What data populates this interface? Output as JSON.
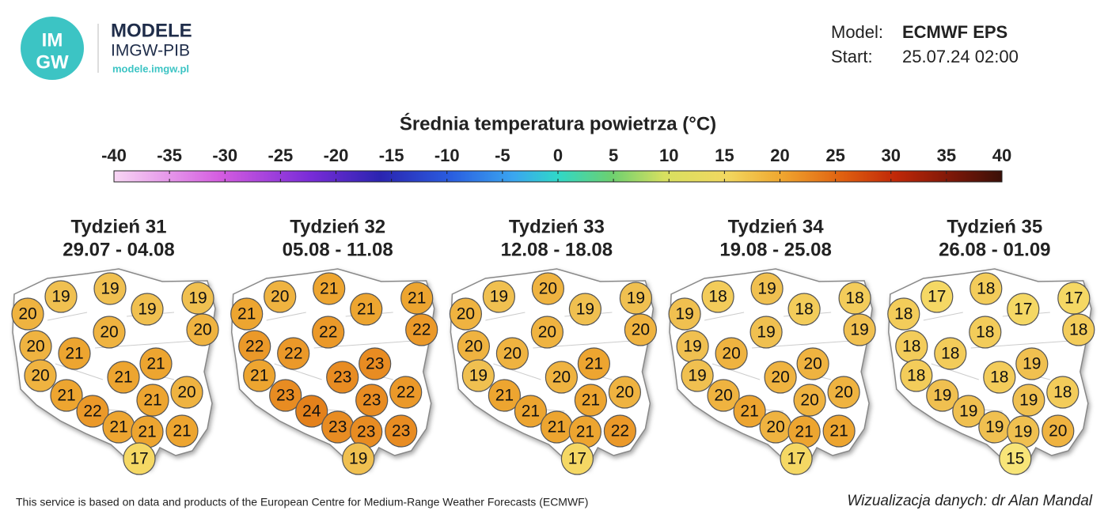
{
  "header": {
    "logo_top": "IM",
    "logo_bottom": "GW",
    "brand": "MODELE",
    "org": "IMGW-PIB",
    "url": "modele.imgw.pl",
    "model_label": "Model:",
    "model": "ECMWF EPS",
    "start_label": "Start:",
    "start": "25.07.24 02:00"
  },
  "colorbar": {
    "title": "Średnia temperatura powietrza (°C)",
    "ticks": [
      -40,
      -35,
      -30,
      -25,
      -20,
      -15,
      -10,
      -5,
      0,
      5,
      10,
      15,
      20,
      25,
      30,
      35,
      40
    ]
  },
  "weeks": [
    {
      "title": "Tydzień 31",
      "dates": "29.07 - 04.08",
      "values": [
        19,
        19,
        19,
        19,
        20,
        20,
        20,
        20,
        21,
        21,
        21,
        20,
        20,
        21,
        21,
        22,
        21,
        21,
        21,
        17
      ]
    },
    {
      "title": "Tydzień 32",
      "dates": "05.08 - 11.08",
      "values": [
        20,
        21,
        21,
        21,
        21,
        22,
        22,
        22,
        22,
        23,
        23,
        21,
        22,
        23,
        23,
        24,
        23,
        23,
        23,
        19
      ]
    },
    {
      "title": "Tydzień 33",
      "dates": "12.08 - 18.08",
      "values": [
        19,
        20,
        19,
        19,
        20,
        20,
        20,
        20,
        20,
        21,
        20,
        19,
        20,
        21,
        21,
        21,
        21,
        21,
        22,
        17
      ]
    },
    {
      "title": "Tydzień 34",
      "dates": "19.08 - 25.08",
      "values": [
        18,
        19,
        18,
        18,
        19,
        19,
        19,
        19,
        20,
        20,
        20,
        19,
        20,
        20,
        20,
        21,
        20,
        21,
        21,
        17
      ]
    },
    {
      "title": "Tydzień 35",
      "dates": "26.08 - 01.09",
      "values": [
        17,
        18,
        17,
        17,
        18,
        18,
        18,
        18,
        18,
        19,
        18,
        18,
        18,
        19,
        19,
        19,
        19,
        19,
        20,
        15
      ]
    }
  ],
  "footer": {
    "source": "This service is based on data and products of the European Centre for Medium-Range Weather Forecasts (ECMWF)",
    "credit": "Wizualizacja danych: dr Alan Mandal"
  }
}
